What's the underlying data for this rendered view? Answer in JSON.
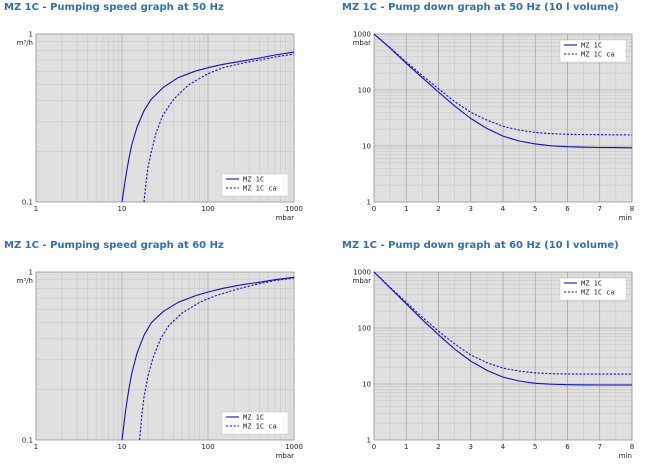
{
  "chart_data": [
    {
      "type": "line",
      "title": "MZ 1C - Pumping speed graph at 50 Hz",
      "xlabel": "mbar",
      "ylabel": "m³/h",
      "xscale": "log",
      "yscale": "log",
      "xlim": [
        1,
        1000
      ],
      "ylim": [
        0.1,
        1
      ],
      "xticks": [
        "1",
        "10",
        "100",
        "1000"
      ],
      "yticks": [
        "0.1",
        "1"
      ],
      "grid": true,
      "legend": "bottom-right",
      "colors": {
        "line": "#1010cc",
        "plot_bg": "#e0e0e0",
        "grid": "#c3c3c3"
      },
      "series": [
        {
          "name": "MZ 1C",
          "style": "solid",
          "x": [
            10,
            11,
            12,
            13,
            15,
            18,
            22,
            30,
            45,
            70,
            100,
            150,
            250,
            400,
            600,
            1000
          ],
          "y": [
            0.1,
            0.14,
            0.18,
            0.22,
            0.28,
            0.35,
            0.41,
            0.48,
            0.55,
            0.6,
            0.63,
            0.66,
            0.69,
            0.72,
            0.75,
            0.78
          ]
        },
        {
          "name": "MZ 1C ca",
          "style": "dashed",
          "x": [
            18,
            19,
            20,
            22,
            25,
            30,
            40,
            60,
            100,
            150,
            250,
            400,
            600,
            1000
          ],
          "y": [
            0.1,
            0.13,
            0.16,
            0.2,
            0.26,
            0.33,
            0.41,
            0.5,
            0.58,
            0.63,
            0.67,
            0.7,
            0.73,
            0.76
          ]
        }
      ]
    },
    {
      "type": "line",
      "title": "MZ 1C - Pump down graph at 50 Hz (10 l volume)",
      "xlabel": "min",
      "ylabel": "mbar",
      "xscale": "linear",
      "yscale": "log",
      "xlim": [
        0,
        8
      ],
      "ylim": [
        1,
        1000
      ],
      "xticks": [
        "0",
        "1",
        "2",
        "3",
        "4",
        "5",
        "6",
        "7",
        "8"
      ],
      "yticks": [
        "1",
        "10",
        "100",
        "1000"
      ],
      "grid": true,
      "legend": "top-right",
      "colors": {
        "line": "#1010cc",
        "plot_bg": "#e0e0e0",
        "grid": "#c3c3c3"
      },
      "series": [
        {
          "name": "MZ 1C",
          "style": "solid",
          "x": [
            0,
            0.5,
            1,
            1.5,
            2,
            2.5,
            3,
            3.5,
            4,
            4.5,
            5,
            5.5,
            6,
            6.5,
            7,
            7.5,
            8
          ],
          "y": [
            1000,
            560,
            300,
            165,
            92,
            52,
            31,
            20.5,
            15,
            12.3,
            10.9,
            10.1,
            9.7,
            9.5,
            9.4,
            9.35,
            9.3
          ]
        },
        {
          "name": "MZ 1C ca",
          "style": "dashed",
          "x": [
            0,
            0.5,
            1,
            1.5,
            2,
            2.5,
            3,
            3.5,
            4,
            4.5,
            5,
            5.5,
            6,
            6.5,
            7,
            7.5,
            8
          ],
          "y": [
            1000,
            570,
            315,
            180,
            105,
            62,
            40,
            29,
            22.5,
            19.2,
            17.5,
            16.6,
            16.2,
            16,
            15.9,
            15.85,
            15.8
          ]
        }
      ]
    },
    {
      "type": "line",
      "title": "MZ 1C - Pumping speed graph at 60 Hz",
      "xlabel": "mbar",
      "ylabel": "m³/h",
      "xscale": "log",
      "yscale": "log",
      "xlim": [
        1,
        1000
      ],
      "ylim": [
        0.1,
        1
      ],
      "xticks": [
        "1",
        "10",
        "100",
        "1000"
      ],
      "yticks": [
        "0.1",
        "1"
      ],
      "grid": true,
      "legend": "bottom-right",
      "colors": {
        "line": "#1010cc",
        "plot_bg": "#e0e0e0",
        "grid": "#c3c3c3"
      },
      "series": [
        {
          "name": "MZ 1C",
          "style": "solid",
          "x": [
            10,
            11,
            12,
            13,
            15,
            18,
            22,
            30,
            45,
            70,
            100,
            150,
            250,
            400,
            600,
            1000
          ],
          "y": [
            0.1,
            0.15,
            0.2,
            0.25,
            0.33,
            0.42,
            0.5,
            0.58,
            0.66,
            0.72,
            0.76,
            0.8,
            0.84,
            0.87,
            0.9,
            0.93
          ]
        },
        {
          "name": "MZ 1C ca",
          "style": "dashed",
          "x": [
            16,
            17,
            18,
            20,
            23,
            28,
            35,
            50,
            80,
            120,
            200,
            350,
            600,
            1000
          ],
          "y": [
            0.1,
            0.14,
            0.18,
            0.24,
            0.31,
            0.4,
            0.48,
            0.57,
            0.66,
            0.72,
            0.78,
            0.84,
            0.89,
            0.92
          ]
        }
      ]
    },
    {
      "type": "line",
      "title": "MZ 1C - Pump down graph at 60 Hz (10 l volume)",
      "xlabel": "min",
      "ylabel": "mbar",
      "xscale": "linear",
      "yscale": "log",
      "xlim": [
        0,
        8
      ],
      "ylim": [
        1,
        1000
      ],
      "xticks": [
        "0",
        "1",
        "2",
        "3",
        "4",
        "5",
        "6",
        "7",
        "8"
      ],
      "yticks": [
        "1",
        "10",
        "100",
        "1000"
      ],
      "grid": true,
      "legend": "top-right",
      "colors": {
        "line": "#1010cc",
        "plot_bg": "#e0e0e0",
        "grid": "#c3c3c3"
      },
      "series": [
        {
          "name": "MZ 1C",
          "style": "solid",
          "x": [
            0,
            0.5,
            1,
            1.5,
            2,
            2.5,
            3,
            3.5,
            4,
            4.5,
            5,
            5.5,
            6,
            6.5,
            7,
            7.5,
            8
          ],
          "y": [
            1000,
            520,
            270,
            140,
            76,
            42,
            25.5,
            17.5,
            13.3,
            11.3,
            10.3,
            9.9,
            9.7,
            9.65,
            9.6,
            9.6,
            9.6
          ]
        },
        {
          "name": "MZ 1C ca",
          "style": "dashed",
          "x": [
            0,
            0.5,
            1,
            1.5,
            2,
            2.5,
            3,
            3.5,
            4,
            4.5,
            5,
            5.5,
            6,
            6.5,
            7,
            7.5,
            8
          ],
          "y": [
            1000,
            530,
            285,
            155,
            88,
            52,
            33,
            24,
            19.2,
            17,
            15.8,
            15.3,
            15.1,
            15,
            15,
            15,
            15
          ]
        }
      ]
    }
  ]
}
